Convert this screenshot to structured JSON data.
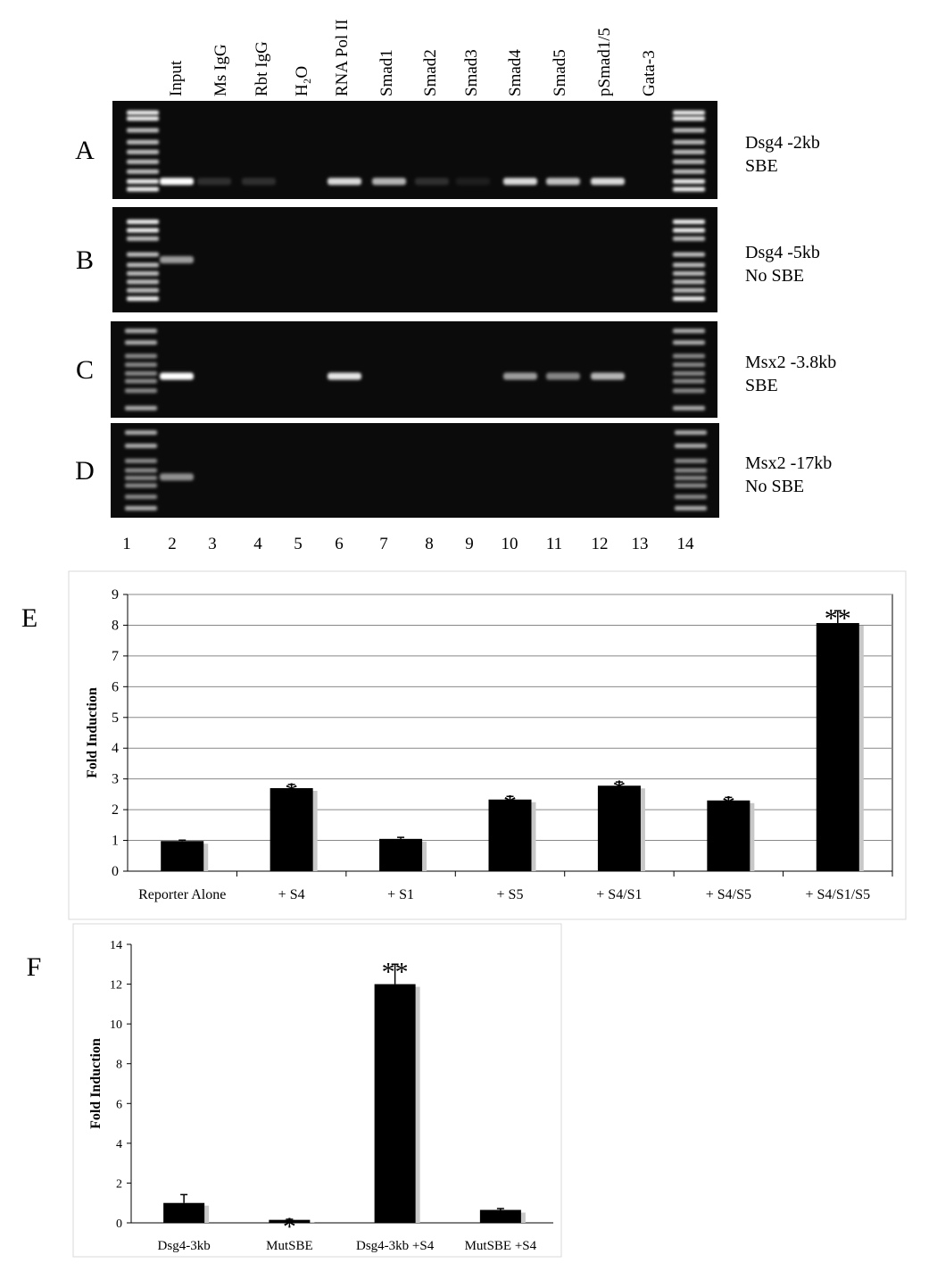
{
  "gel": {
    "lanes": [
      "Input",
      "Ms IgG",
      "Rbt IgG",
      "H₂O",
      "RNA Pol II",
      "Smad1",
      "Smad2",
      "Smad3",
      "Smad4",
      "Smad5",
      "pSmad1/5",
      "Gata-3"
    ],
    "lane_numbers": [
      1,
      2,
      3,
      4,
      5,
      6,
      7,
      8,
      9,
      10,
      11,
      12,
      13,
      14
    ],
    "panels": [
      {
        "letter": "A",
        "label": [
          "Dsg4 -2kb",
          "SBE"
        ]
      },
      {
        "letter": "B",
        "label": [
          "Dsg4 -5kb",
          "No SBE"
        ]
      },
      {
        "letter": "C",
        "label": [
          "Msx2 -3.8kb",
          "SBE"
        ]
      },
      {
        "letter": "D",
        "label": [
          "Msx2 -17kb",
          "No SBE"
        ]
      }
    ]
  },
  "chart_data": [
    {
      "type": "bar",
      "panel": "E",
      "y_label": "Fold Induction",
      "categories": [
        "Reporter Alone",
        "+ S4",
        "+ S1",
        "+ S5",
        "+ S4/S1",
        "+ S4/S5",
        "+ S4/S1/S5"
      ],
      "values": [
        0.98,
        2.7,
        1.05,
        2.33,
        2.78,
        2.3,
        8.07
      ],
      "errors": [
        0.03,
        0.12,
        0.05,
        0.1,
        0.12,
        0.1,
        0.4
      ],
      "annotations": [
        null,
        "*",
        null,
        "*",
        "*",
        "*",
        "**"
      ],
      "color": "#000000",
      "ylim": [
        0,
        9
      ],
      "yticks": [
        0,
        1,
        2,
        3,
        4,
        5,
        6,
        7,
        8,
        9
      ],
      "grid": true
    },
    {
      "type": "bar",
      "panel": "F",
      "y_label": "Fold Induction",
      "categories": [
        "Dsg4-3kb",
        "MutSBE",
        "Dsg4-3kb +S4",
        "MutSBE +S4"
      ],
      "values": [
        1.0,
        0.15,
        12.0,
        0.65
      ],
      "errors": [
        0.42,
        0.03,
        1.0,
        0.07
      ],
      "annotations": [
        null,
        "*",
        "**",
        null
      ],
      "color": "#000000",
      "ylim": [
        0,
        14
      ],
      "yticks": [
        0,
        2,
        4,
        6,
        8,
        10,
        12,
        14
      ],
      "grid": false
    }
  ]
}
